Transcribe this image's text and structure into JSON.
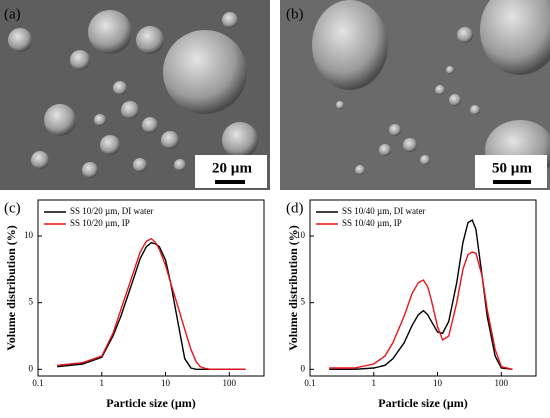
{
  "panels": [
    {
      "label": "(a)",
      "scale_bar": "20 µm"
    },
    {
      "label": "(b)",
      "scale_bar": "50 µm"
    }
  ],
  "chart_data": [
    {
      "type": "line",
      "panel_label": "(c)",
      "xlabel": "Particle size (µm)",
      "ylabel": "Volume distribution (%)",
      "xscale": "log",
      "xlim": [
        0.1,
        350
      ],
      "xticks": [
        0.1,
        1,
        10,
        100
      ],
      "ylim": [
        -0.5,
        12.7
      ],
      "yticks": [
        0,
        5,
        10
      ],
      "legend": "upper left",
      "x": [
        0.2,
        0.5,
        1,
        1.5,
        2,
        3,
        4,
        5,
        6,
        7,
        8,
        10,
        12,
        15,
        20,
        25,
        30,
        35,
        40,
        50,
        60,
        80,
        100,
        180
      ],
      "series": [
        {
          "name": "SS 10/20 µm, DI water",
          "color": "#000000",
          "values": [
            0.2,
            0.4,
            0.9,
            2.5,
            4,
            6.5,
            8.3,
            9.2,
            9.5,
            9.4,
            9.2,
            8.2,
            6.5,
            4,
            0.8,
            0.1,
            0,
            0,
            0,
            0,
            0,
            0,
            0,
            0
          ]
        },
        {
          "name": "SS 10/20 µm, IP",
          "color": "#e8141c",
          "values": [
            0.3,
            0.5,
            1,
            2.7,
            4.5,
            7,
            8.8,
            9.6,
            9.8,
            9.5,
            9,
            7.8,
            6.5,
            5,
            3,
            1.5,
            0.6,
            0.2,
            0.1,
            0,
            0,
            0,
            0,
            0
          ]
        }
      ]
    },
    {
      "type": "line",
      "panel_label": "(d)",
      "xlabel": "Particle size (µm)",
      "ylabel": "Volume distribution (%)",
      "xscale": "log",
      "xlim": [
        0.1,
        350
      ],
      "xticks": [
        0.1,
        1,
        10,
        100
      ],
      "ylim": [
        -0.5,
        12.7
      ],
      "yticks": [
        0,
        5,
        10
      ],
      "legend": "upper left",
      "x": [
        0.2,
        0.5,
        1,
        1.5,
        2,
        3,
        4,
        5,
        6,
        7,
        8,
        10,
        12,
        15,
        20,
        25,
        30,
        35,
        40,
        50,
        60,
        80,
        100,
        150
      ],
      "series": [
        {
          "name": "SS 10/40 µm, DI water",
          "color": "#000000",
          "values": [
            0,
            0,
            0.1,
            0.3,
            0.8,
            2,
            3.3,
            4.1,
            4.4,
            4.1,
            3.6,
            2.8,
            2.7,
            3.6,
            6.5,
            9.5,
            11,
            11.2,
            10.5,
            7,
            4,
            1,
            0.1,
            0
          ]
        },
        {
          "name": "SS 10/40 µm, IP",
          "color": "#e8141c",
          "values": [
            0.1,
            0.1,
            0.4,
            1,
            2,
            4,
            5.7,
            6.5,
            6.7,
            6.2,
            5.2,
            3.2,
            2.2,
            2.5,
            5,
            7.5,
            8.6,
            8.8,
            8.7,
            7,
            4.5,
            1.5,
            0.2,
            0
          ]
        }
      ]
    }
  ]
}
